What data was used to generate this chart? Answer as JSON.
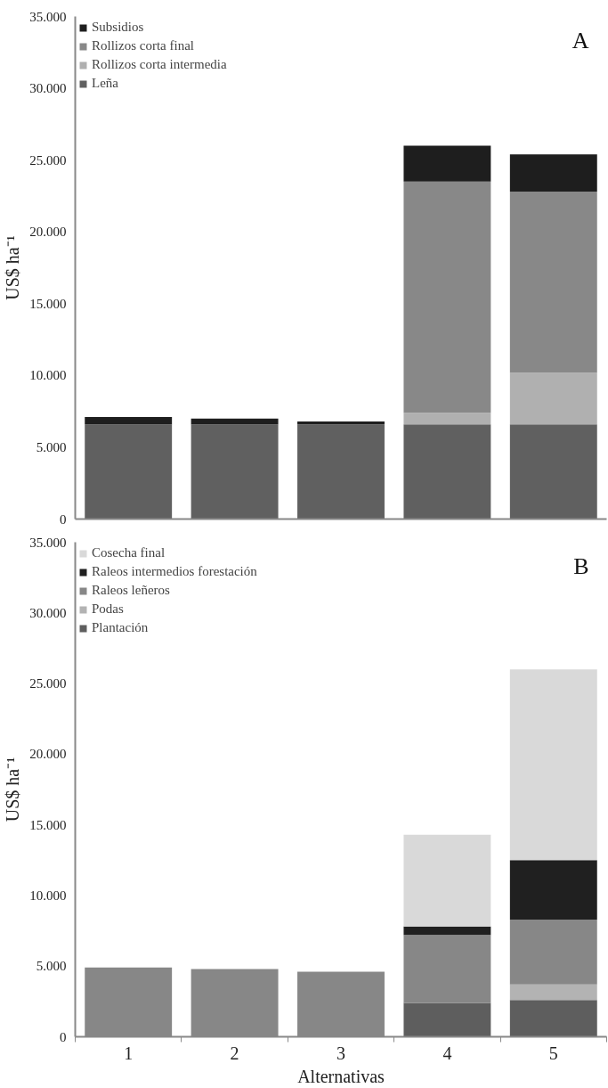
{
  "chart_data": [
    {
      "type": "bar",
      "title": "A",
      "ylabel": "US$ ha⁻¹",
      "stacked": true,
      "legend": "top left",
      "grid": false,
      "tick_labels": "y",
      "categories": [
        "1",
        "2",
        "3",
        "4",
        "5"
      ],
      "ylim": [
        0,
        35000
      ],
      "yticks": [
        {
          "value": 0,
          "label": "0"
        },
        {
          "value": 5000,
          "label": "5.000"
        },
        {
          "value": 10000,
          "label": "10.000"
        },
        {
          "value": 15000,
          "label": "15.000"
        },
        {
          "value": 20000,
          "label": "20.000"
        },
        {
          "value": 25000,
          "label": "25.000"
        },
        {
          "value": 30000,
          "label": "30.000"
        },
        {
          "value": 35000,
          "label": "35.000"
        }
      ],
      "series": [
        {
          "name": "Leña",
          "color": "#606060",
          "values": [
            6600,
            6600,
            6600,
            6600,
            6600
          ]
        },
        {
          "name": "Rollizos corta intermedia",
          "color": "#b0b0b0",
          "values": [
            0,
            0,
            0,
            800,
            3600
          ]
        },
        {
          "name": "Rollizos corta final",
          "color": "#888888",
          "values": [
            0,
            0,
            0,
            16100,
            12600
          ]
        },
        {
          "name": "Subsidios",
          "color": "#1e1e1e",
          "values": [
            500,
            400,
            200,
            2500,
            2600
          ]
        }
      ]
    },
    {
      "type": "bar",
      "title": "B",
      "xlabel": "Alternativas",
      "ylabel": "US$ ha⁻¹",
      "stacked": true,
      "legend": "top left",
      "grid": false,
      "categories": [
        "1",
        "2",
        "3",
        "4",
        "5"
      ],
      "ylim": [
        0,
        35000
      ],
      "yticks": [
        {
          "value": 0,
          "label": "0"
        },
        {
          "value": 5000,
          "label": "5.000"
        },
        {
          "value": 10000,
          "label": "10.000"
        },
        {
          "value": 15000,
          "label": "15.000"
        },
        {
          "value": 20000,
          "label": "20.000"
        },
        {
          "value": 25000,
          "label": "25.000"
        },
        {
          "value": 30000,
          "label": "30.000"
        },
        {
          "value": 35000,
          "label": "35.000"
        }
      ],
      "series": [
        {
          "name": "Plantación",
          "color": "#5e5e5e",
          "values": [
            0,
            0,
            0,
            2400,
            2600
          ]
        },
        {
          "name": "Podas",
          "color": "#b3b3b3",
          "values": [
            0,
            0,
            0,
            0,
            1100
          ]
        },
        {
          "name": "Raleos leñeros",
          "color": "#878787",
          "values": [
            4900,
            4800,
            4600,
            4800,
            4600
          ]
        },
        {
          "name": "Raleos intermedios forestación",
          "color": "#202020",
          "values": [
            0,
            0,
            0,
            600,
            4200
          ]
        },
        {
          "name": "Cosecha final",
          "color": "#d9d9d9",
          "values": [
            0,
            0,
            0,
            6500,
            13500
          ]
        }
      ]
    }
  ]
}
